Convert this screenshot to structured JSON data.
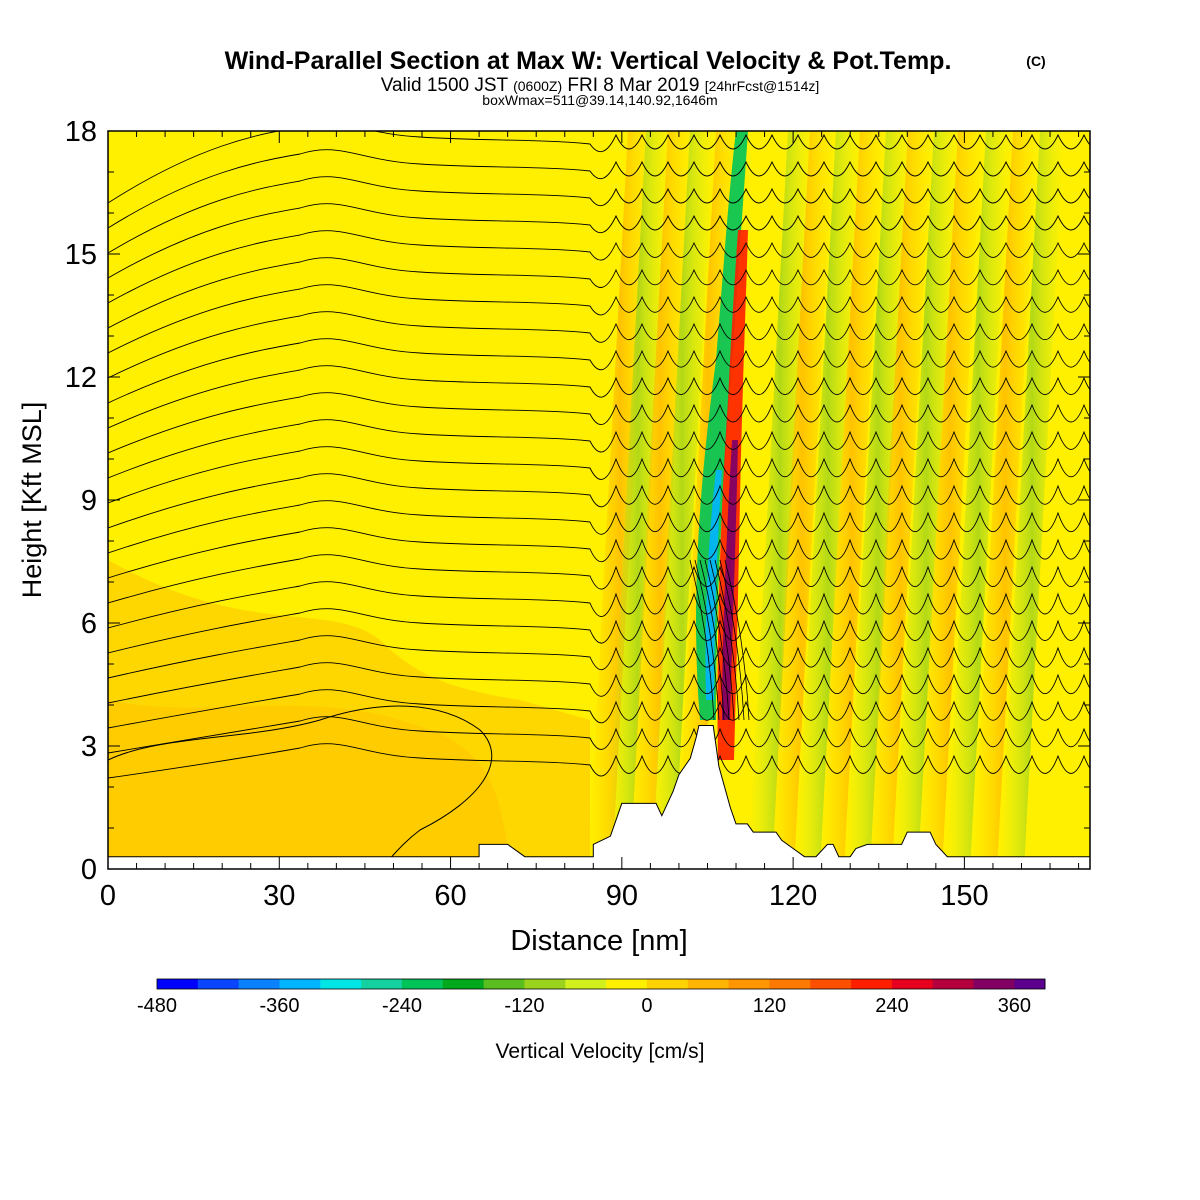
{
  "chart_data": {
    "type": "heatmap",
    "title": "Wind-Parallel Section at Max W: Vertical Velocity & Pot.Temp.",
    "title_unit": "(C)",
    "subtitle": {
      "valid_prefix": "Valid 1500 JST",
      "zulu": "(0600Z)",
      "date": "FRI 8 Mar 2019",
      "forecast": "[24hrFcst@1514z]"
    },
    "note": "boxWmax=511@39.14,140.92,1646m",
    "xlabel": "Distance [nm]",
    "ylabel": "Height [Kft MSL]",
    "xlim": [
      0,
      172
    ],
    "ylim": [
      0,
      18
    ],
    "x_ticks": [
      "0",
      "30",
      "60",
      "90",
      "120",
      "150"
    ],
    "x_tick_values": [
      0,
      30,
      60,
      90,
      120,
      150
    ],
    "y_ticks": [
      "0",
      "3",
      "6",
      "9",
      "12",
      "15",
      "18"
    ],
    "y_tick_values": [
      0,
      3,
      6,
      9,
      12,
      15,
      18
    ],
    "colorbar": {
      "label": "Vertical Velocity [cm/s]",
      "ticks": [
        "-480",
        "-360",
        "-240",
        "-120",
        "0",
        "120",
        "240",
        "360"
      ],
      "min": -480,
      "max": 390,
      "step": 40,
      "colors": [
        "#0000ff",
        "#0a46ff",
        "#0a82ff",
        "#00b4ff",
        "#00e6e6",
        "#14d2a0",
        "#00c35a",
        "#00a81e",
        "#5abe1e",
        "#9bd21e",
        "#d2f01e",
        "#fff000",
        "#ffd200",
        "#ffb400",
        "#ff9600",
        "#ff7800",
        "#ff5000",
        "#ff1e00",
        "#e6001e",
        "#b4003c",
        "#820064",
        "#5a008c"
      ]
    },
    "background_color": "#fff000",
    "terrain_profile": [
      [
        0,
        0.3
      ],
      [
        65,
        0.3
      ],
      [
        65,
        0.6
      ],
      [
        70,
        0.6
      ],
      [
        73,
        0.3
      ],
      [
        85,
        0.3
      ],
      [
        85,
        0.6
      ],
      [
        88,
        0.8
      ],
      [
        89,
        1.2
      ],
      [
        90,
        1.6
      ],
      [
        96,
        1.6
      ],
      [
        97,
        1.3
      ],
      [
        98,
        1.6
      ],
      [
        99,
        1.9
      ],
      [
        100,
        2.3
      ],
      [
        101,
        2.5
      ],
      [
        102,
        2.7
      ],
      [
        103,
        3.2
      ],
      [
        103.5,
        3.5
      ],
      [
        106,
        3.5
      ],
      [
        107,
        2.5
      ],
      [
        108,
        2.0
      ],
      [
        109,
        1.5
      ],
      [
        110,
        1.1
      ],
      [
        112,
        1.1
      ],
      [
        113,
        0.9
      ],
      [
        117,
        0.9
      ],
      [
        118,
        0.7
      ],
      [
        120,
        0.5
      ],
      [
        122,
        0.3
      ],
      [
        124,
        0.3
      ],
      [
        126,
        0.6
      ],
      [
        127,
        0.6
      ],
      [
        128,
        0.3
      ],
      [
        130,
        0.3
      ],
      [
        131,
        0.5
      ],
      [
        133,
        0.6
      ],
      [
        139,
        0.6
      ],
      [
        140,
        0.9
      ],
      [
        144,
        0.9
      ],
      [
        145,
        0.6
      ],
      [
        147,
        0.3
      ],
      [
        172,
        0.3
      ]
    ]
  }
}
